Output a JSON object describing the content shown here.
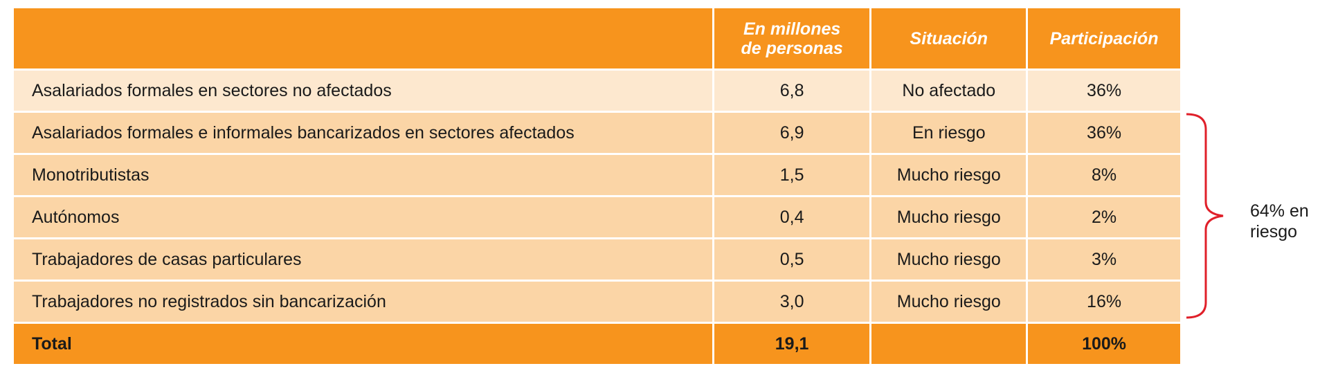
{
  "table": {
    "headers": {
      "label": "",
      "millions_line1": "En millones",
      "millions_line2": "de personas",
      "situation": "Situación",
      "share": "Participación"
    },
    "rows": [
      {
        "label": "Asalariados formales en sectores no afectados",
        "millions": "6,8",
        "situation": "No afectado",
        "share": "36%"
      },
      {
        "label": "Asalariados formales e informales bancarizados en sectores afectados",
        "millions": "6,9",
        "situation": "En riesgo",
        "share": "36%"
      },
      {
        "label": "Monotributistas",
        "millions": "1,5",
        "situation": "Mucho riesgo",
        "share": "8%"
      },
      {
        "label": "Autónomos",
        "millions": "0,4",
        "situation": "Mucho riesgo",
        "share": "2%"
      },
      {
        "label": "Trabajadores de casas particulares",
        "millions": "0,5",
        "situation": "Mucho riesgo",
        "share": "3%"
      },
      {
        "label": "Trabajadores no registrados sin bancarización",
        "millions": "3,0",
        "situation": "Mucho riesgo",
        "share": "16%"
      }
    ],
    "total": {
      "label": "Total",
      "millions": "19,1",
      "situation": "",
      "share": "100%"
    }
  },
  "annotation": {
    "line1": "64% en",
    "line2": "riesgo",
    "color": "#e0202a"
  },
  "colors": {
    "header": "#f7941d",
    "row_light": "#fde8cf",
    "row_mid": "#fbd5a6"
  }
}
